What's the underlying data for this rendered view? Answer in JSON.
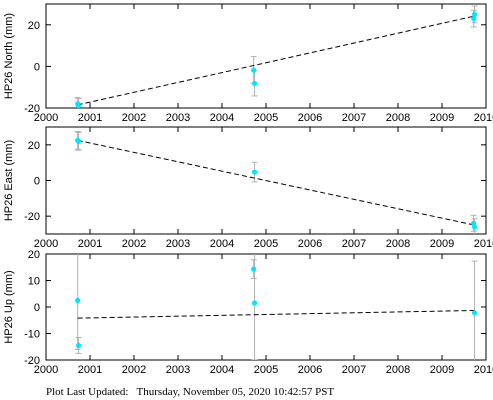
{
  "chart_data": [
    {
      "type": "scatter",
      "ylabel": "HP26 North (mm)",
      "xlim": [
        2000,
        2010
      ],
      "ylim": [
        -20,
        30
      ],
      "xticks": [
        2000,
        2001,
        2002,
        2003,
        2004,
        2005,
        2006,
        2007,
        2008,
        2009,
        2010
      ],
      "yticks": [
        -20,
        0,
        20
      ],
      "points": [
        {
          "x": 2000.72,
          "y": -18.0,
          "err": 3.0
        },
        {
          "x": 2000.74,
          "y": -19.0,
          "err": 3.5
        },
        {
          "x": 2004.72,
          "y": -1.8,
          "err": 6.5
        },
        {
          "x": 2004.74,
          "y": -8.2,
          "err": 6.0
        },
        {
          "x": 2009.72,
          "y": 23.0,
          "err": 4.0
        },
        {
          "x": 2009.74,
          "y": 25.0,
          "err": 4.0
        }
      ],
      "trend": [
        {
          "x": 2000.72,
          "y": -18.5
        },
        {
          "x": 2009.74,
          "y": 24.2
        }
      ],
      "show_xtick_labels": true
    },
    {
      "type": "scatter",
      "ylabel": "HP26 East (mm)",
      "xlim": [
        2000,
        2010
      ],
      "ylim": [
        -30,
        30
      ],
      "xticks": [
        2000,
        2001,
        2002,
        2003,
        2004,
        2005,
        2006,
        2007,
        2008,
        2009,
        2010
      ],
      "yticks": [
        -20,
        0,
        20
      ],
      "points": [
        {
          "x": 2000.72,
          "y": 22.5,
          "err": 5.0
        },
        {
          "x": 2000.74,
          "y": 22.0,
          "err": 5.0
        },
        {
          "x": 2004.74,
          "y": 4.7,
          "err": 5.5
        },
        {
          "x": 2009.72,
          "y": -24.0,
          "err": 4.5
        },
        {
          "x": 2009.74,
          "y": -26.0,
          "err": 4.5
        }
      ],
      "trend": [
        {
          "x": 2000.72,
          "y": 22.5
        },
        {
          "x": 2009.74,
          "y": -25.0
        }
      ],
      "show_xtick_labels": true
    },
    {
      "type": "scatter",
      "ylabel": "HP26 Up (mm)",
      "xlim": [
        2000,
        2010
      ],
      "ylim": [
        -20,
        20
      ],
      "xticks": [
        2000,
        2001,
        2002,
        2003,
        2004,
        2005,
        2006,
        2007,
        2008,
        2009,
        2010
      ],
      "yticks": [
        -20,
        -10,
        0,
        10,
        20
      ],
      "points": [
        {
          "x": 2000.72,
          "y": 2.5,
          "err": 18.5
        },
        {
          "x": 2000.74,
          "y": -14.5,
          "err": 3.0
        },
        {
          "x": 2004.72,
          "y": 14.3,
          "err": 3.5
        },
        {
          "x": 2004.74,
          "y": 1.5,
          "err": 21.5
        },
        {
          "x": 2009.74,
          "y": -2.2,
          "err": 19.5
        }
      ],
      "trend": [
        {
          "x": 2000.72,
          "y": -4.2
        },
        {
          "x": 2009.74,
          "y": -1.3
        }
      ],
      "show_xtick_labels": true
    }
  ],
  "colors": {
    "point": "#00e5ff",
    "errorbar": "#b0b0b0",
    "trend": "#000000"
  },
  "footer": "Plot Last Updated:   Thursday, November 05, 2020 10:42:57 PST"
}
